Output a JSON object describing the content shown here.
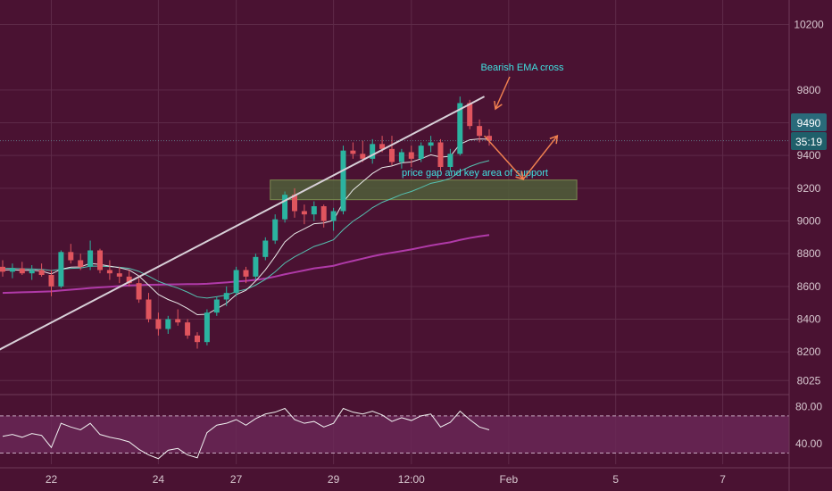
{
  "colors": {
    "background": "#4a1232",
    "grid": "#5e2a48",
    "up_candle": "#2bb3a0",
    "down_candle": "#e0555e",
    "ema_fast": "#e8e8e8",
    "ema_slow": "#55c0b0",
    "ema_long": "#b03aa8",
    "trendline": "#d8d0d8",
    "annotation_text": "#40e0e0",
    "arrow": "#f08050",
    "support_zone": "#4f5f3a",
    "rsi_line": "#f0f0f0",
    "rsi_band": "#6a2858",
    "price_tag": "#2a6a7a",
    "timer_tag": "#1f5f6a"
  },
  "price_axis": {
    "ticks": [
      "10200",
      "9800",
      "9600",
      "9400",
      "9200",
      "9000",
      "8800",
      "8600",
      "8400",
      "8200",
      "8025"
    ],
    "tick_values": [
      10200,
      9800,
      9600,
      9400,
      9200,
      9000,
      8800,
      8600,
      8400,
      8200,
      8025
    ]
  },
  "time_axis": {
    "ticks": [
      "22",
      "24",
      "27",
      "29",
      "12:00",
      "Feb",
      "5",
      "7"
    ],
    "tick_index": [
      5,
      16,
      24,
      34,
      42,
      52,
      63,
      74
    ]
  },
  "rsi_axis": {
    "ticks": [
      "80.00",
      "40.00"
    ],
    "tick_values": [
      80,
      40
    ],
    "upper_band": 70,
    "lower_band": 30
  },
  "last_price": {
    "value": "9490",
    "timer": "35:19"
  },
  "annotations": {
    "ema_cross": "Bearish EMA cross",
    "support": "price gap and key area of support"
  },
  "chart_data": {
    "type": "candlestick",
    "price_range": [
      7950,
      10350
    ],
    "rsi_range": [
      18,
      90
    ],
    "ohlc": [
      [
        8720,
        8760,
        8660,
        8690
      ],
      [
        8690,
        8740,
        8650,
        8710
      ],
      [
        8710,
        8750,
        8670,
        8680
      ],
      [
        8680,
        8730,
        8640,
        8700
      ],
      [
        8700,
        8740,
        8660,
        8670
      ],
      [
        8670,
        8700,
        8540,
        8600
      ],
      [
        8600,
        8820,
        8590,
        8810
      ],
      [
        8810,
        8860,
        8740,
        8760
      ],
      [
        8760,
        8800,
        8700,
        8720
      ],
      [
        8720,
        8880,
        8700,
        8820
      ],
      [
        8820,
        8830,
        8680,
        8700
      ],
      [
        8700,
        8760,
        8640,
        8680
      ],
      [
        8680,
        8720,
        8620,
        8660
      ],
      [
        8660,
        8700,
        8600,
        8620
      ],
      [
        8620,
        8650,
        8500,
        8520
      ],
      [
        8520,
        8560,
        8380,
        8400
      ],
      [
        8400,
        8440,
        8300,
        8340
      ],
      [
        8340,
        8420,
        8310,
        8400
      ],
      [
        8400,
        8460,
        8360,
        8380
      ],
      [
        8380,
        8400,
        8280,
        8300
      ],
      [
        8300,
        8320,
        8220,
        8260
      ],
      [
        8260,
        8460,
        8240,
        8440
      ],
      [
        8440,
        8540,
        8420,
        8520
      ],
      [
        8520,
        8600,
        8480,
        8560
      ],
      [
        8560,
        8720,
        8540,
        8700
      ],
      [
        8700,
        8720,
        8620,
        8660
      ],
      [
        8660,
        8800,
        8640,
        8780
      ],
      [
        8780,
        8900,
        8760,
        8880
      ],
      [
        8880,
        9040,
        8860,
        9010
      ],
      [
        9010,
        9180,
        8990,
        9160
      ],
      [
        9160,
        9200,
        9020,
        9060
      ],
      [
        9060,
        9100,
        8980,
        9040
      ],
      [
        9040,
        9120,
        9000,
        9090
      ],
      [
        9090,
        9100,
        8960,
        9000
      ],
      [
        9000,
        9080,
        8940,
        9060
      ],
      [
        9060,
        9460,
        9040,
        9430
      ],
      [
        9430,
        9480,
        9380,
        9410
      ],
      [
        9410,
        9490,
        9360,
        9380
      ],
      [
        9380,
        9500,
        9350,
        9470
      ],
      [
        9470,
        9520,
        9420,
        9440
      ],
      [
        9440,
        9520,
        9340,
        9360
      ],
      [
        9360,
        9440,
        9320,
        9420
      ],
      [
        9420,
        9460,
        9330,
        9380
      ],
      [
        9380,
        9480,
        9360,
        9460
      ],
      [
        9460,
        9520,
        9420,
        9480
      ],
      [
        9480,
        9500,
        9300,
        9330
      ],
      [
        9330,
        9440,
        9300,
        9410
      ],
      [
        9410,
        9760,
        9400,
        9720
      ],
      [
        9720,
        9740,
        9560,
        9580
      ],
      [
        9580,
        9620,
        9480,
        9520
      ],
      [
        9520,
        9560,
        9460,
        9490
      ]
    ],
    "ema_fast": [
      8700,
      8702,
      8698,
      8699,
      8694,
      8676,
      8705,
      8718,
      8719,
      8741,
      8734,
      8724,
      8714,
      8700,
      8664,
      8608,
      8551,
      8520,
      8497,
      8465,
      8427,
      8430,
      8464,
      8497,
      8550,
      8576,
      8633,
      8701,
      8783,
      8872,
      8922,
      8952,
      8983,
      8988,
      9004,
      9115,
      9189,
      9240,
      9290,
      9326,
      9336,
      9355,
      9360,
      9380,
      9404,
      9390,
      9395,
      9469,
      9496,
      9501,
      9499
    ],
    "ema_slow": [
      8710,
      8710,
      8708,
      8707,
      8704,
      8697,
      8704,
      8710,
      8712,
      8724,
      8724,
      8721,
      8717,
      8710,
      8692,
      8663,
      8631,
      8609,
      8590,
      8565,
      8536,
      8529,
      8537,
      8547,
      8568,
      8582,
      8608,
      8643,
      8689,
      8743,
      8781,
      8812,
      8844,
      8863,
      8885,
      8947,
      8998,
      9037,
      9081,
      9114,
      9137,
      9162,
      9180,
      9204,
      9230,
      9242,
      9260,
      9303,
      9332,
      9354,
      9369
    ],
    "ema_long": [
      8560,
      8562,
      8564,
      8566,
      8568,
      8570,
      8575,
      8580,
      8585,
      8590,
      8594,
      8598,
      8602,
      8606,
      8608,
      8610,
      8611,
      8612,
      8613,
      8614,
      8614,
      8616,
      8620,
      8624,
      8630,
      8634,
      8640,
      8648,
      8660,
      8674,
      8686,
      8698,
      8710,
      8718,
      8726,
      8742,
      8756,
      8770,
      8784,
      8796,
      8806,
      8816,
      8826,
      8838,
      8850,
      8860,
      8870,
      8884,
      8896,
      8906,
      8914
    ],
    "rsi": [
      48,
      50,
      47,
      51,
      49,
      36,
      62,
      58,
      55,
      62,
      50,
      47,
      45,
      42,
      34,
      28,
      24,
      33,
      35,
      28,
      25,
      52,
      60,
      62,
      66,
      60,
      67,
      72,
      74,
      78,
      66,
      62,
      64,
      58,
      62,
      78,
      74,
      72,
      75,
      71,
      64,
      68,
      65,
      70,
      72,
      58,
      63,
      75,
      66,
      58,
      55
    ],
    "trendline": [
      [
        -4,
        8100
      ],
      [
        49.5,
        9760
      ]
    ],
    "support_zone": [
      9130,
      9250
    ],
    "support_zone_index": [
      27.5,
      59
    ],
    "projection": [
      [
        49.5,
        9520
      ],
      [
        53.5,
        9255
      ],
      [
        57,
        9520
      ]
    ]
  }
}
